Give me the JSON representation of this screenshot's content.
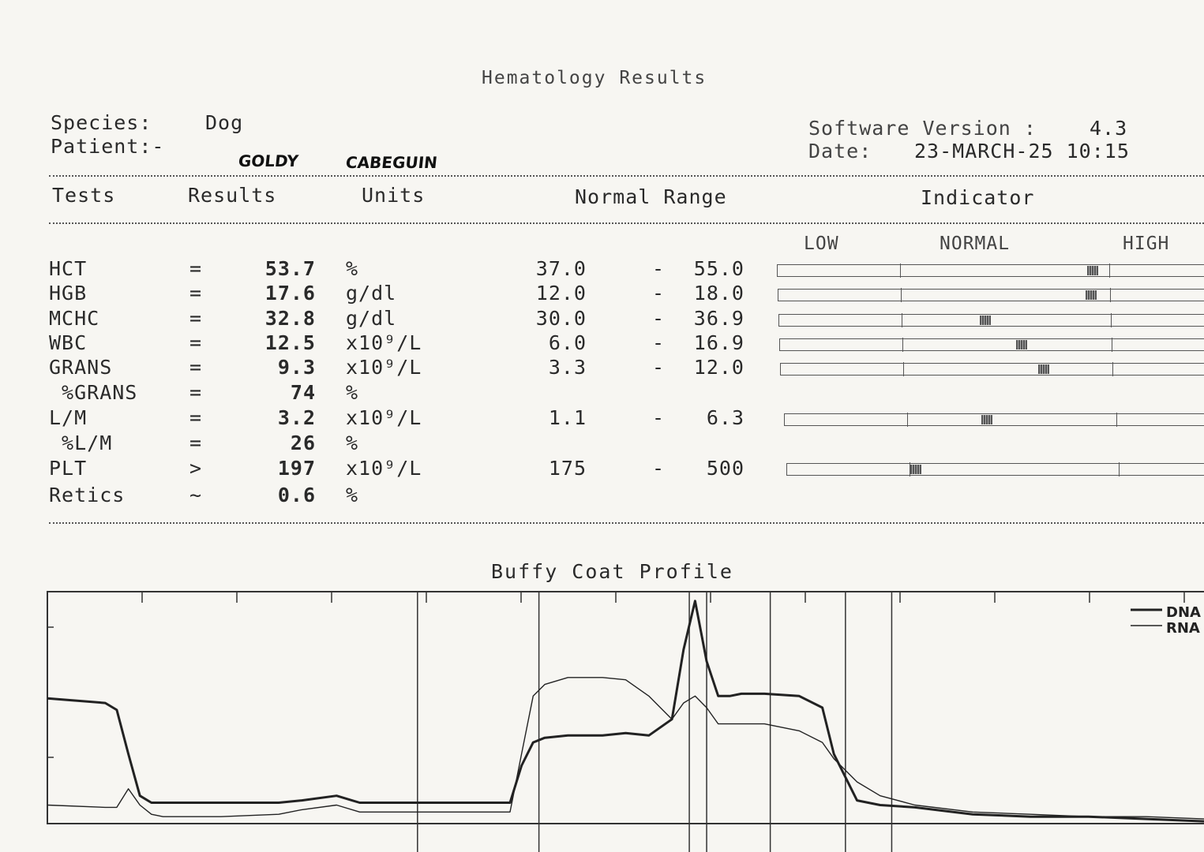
{
  "report": {
    "title": "Hematology Results",
    "species_label": "Species:",
    "species_value": "Dog",
    "patient_label": "Patient:-",
    "patient_first": "GOLDY",
    "patient_last": "CABEGUIN",
    "software_label": "Software Version :",
    "software_value": "4.3",
    "date_label": "Date:",
    "date_value": "23-MARCH-25 10:15"
  },
  "table": {
    "headers": {
      "tests": "Tests",
      "results": "Results",
      "units": "Units",
      "normal_range": "Normal Range",
      "indicator": "Indicator"
    },
    "indicator_labels": {
      "low": "LOW",
      "normal": "NORMAL",
      "high": "HIGH"
    },
    "rows": [
      {
        "test": "HCT",
        "op": "=",
        "result": "53.7",
        "unit": "%",
        "range_low": "37.0",
        "dash": "-",
        "range_high": "55.0",
        "indicator_level": 0.92
      },
      {
        "test": "HGB",
        "op": "=",
        "result": "17.6",
        "unit": "g/dl",
        "range_low": "12.0",
        "dash": "-",
        "range_high": "18.0",
        "indicator_level": 0.91
      },
      {
        "test": "MCHC",
        "op": "=",
        "result": "32.8",
        "unit": "g/dl",
        "range_low": "30.0",
        "dash": "-",
        "range_high": "36.9",
        "indicator_level": 0.4
      },
      {
        "test": "WBC",
        "op": "=",
        "result": "12.5",
        "unit": "x10⁹/L",
        "range_low": "6.0",
        "dash": "-",
        "range_high": "16.9",
        "indicator_level": 0.57
      },
      {
        "test": "GRANS",
        "op": "=",
        "result": "9.3",
        "unit": "x10⁹/L",
        "range_low": "3.3",
        "dash": "-",
        "range_high": "12.0",
        "indicator_level": 0.67
      },
      {
        "test": " %GRANS",
        "op": "=",
        "result": "74",
        "unit": "%",
        "range_low": "",
        "dash": "",
        "range_high": "",
        "indicator_level": null
      },
      {
        "test": "L/M",
        "op": "=",
        "result": "3.2",
        "unit": "x10⁹/L",
        "range_low": "1.1",
        "dash": "-",
        "range_high": "6.3",
        "indicator_level": 0.38
      },
      {
        "test": " %L/M",
        "op": "=",
        "result": "26",
        "unit": "%",
        "range_low": "",
        "dash": "",
        "range_high": "",
        "indicator_level": null
      },
      {
        "test": "PLT",
        "op": ">",
        "result": "197",
        "unit": "x10⁹/L",
        "range_low": "175",
        "dash": "-",
        "range_high": "500",
        "indicator_level": 0.03
      },
      {
        "test": "Retics",
        "op": "~",
        "result": "0.6",
        "unit": "%",
        "range_low": "",
        "dash": "",
        "range_high": "",
        "indicator_level": null
      }
    ]
  },
  "chart_data": {
    "type": "line",
    "title": "Buffy Coat Profile",
    "xlabel": "",
    "ylabel": "",
    "ylim": [
      0,
      100
    ],
    "xlim": [
      0,
      100
    ],
    "legend_position": "top-right",
    "grid": false,
    "series": [
      {
        "name": "DNA",
        "x": [
          0,
          5,
          6,
          7,
          8,
          9,
          10,
          11,
          15,
          20,
          22,
          25,
          27,
          30,
          35,
          40,
          41,
          42,
          43,
          45,
          48,
          50,
          52,
          54,
          55,
          56,
          57,
          58,
          59,
          60,
          62,
          65,
          67,
          68,
          70,
          72,
          75,
          80,
          85,
          90,
          95,
          100
        ],
        "y": [
          54,
          52,
          49,
          30,
          12,
          9,
          9,
          9,
          9,
          9,
          10,
          12,
          9,
          9,
          9,
          9,
          25,
          35,
          37,
          38,
          38,
          39,
          38,
          45,
          75,
          96,
          70,
          55,
          55,
          56,
          56,
          55,
          50,
          30,
          10,
          8,
          7,
          4,
          3,
          3,
          2,
          1
        ]
      },
      {
        "name": "RNA",
        "x": [
          0,
          5,
          6,
          7,
          8,
          9,
          10,
          11,
          15,
          20,
          22,
          25,
          27,
          30,
          35,
          40,
          41,
          42,
          43,
          45,
          48,
          50,
          52,
          54,
          55,
          56,
          57,
          58,
          59,
          60,
          62,
          65,
          67,
          68,
          70,
          72,
          75,
          80,
          85,
          90,
          95,
          100
        ],
        "y": [
          8,
          7,
          7,
          15,
          8,
          4,
          3,
          3,
          3,
          4,
          6,
          8,
          5,
          5,
          5,
          5,
          30,
          55,
          60,
          63,
          63,
          62,
          55,
          45,
          52,
          55,
          50,
          43,
          43,
          43,
          43,
          40,
          35,
          28,
          18,
          12,
          8,
          5,
          4,
          3,
          3,
          2
        ]
      }
    ],
    "legend": [
      "DNA",
      "RNA"
    ],
    "region_bounds": [
      32,
      42.5,
      55.5,
      57,
      62.5,
      69,
      73
    ]
  }
}
